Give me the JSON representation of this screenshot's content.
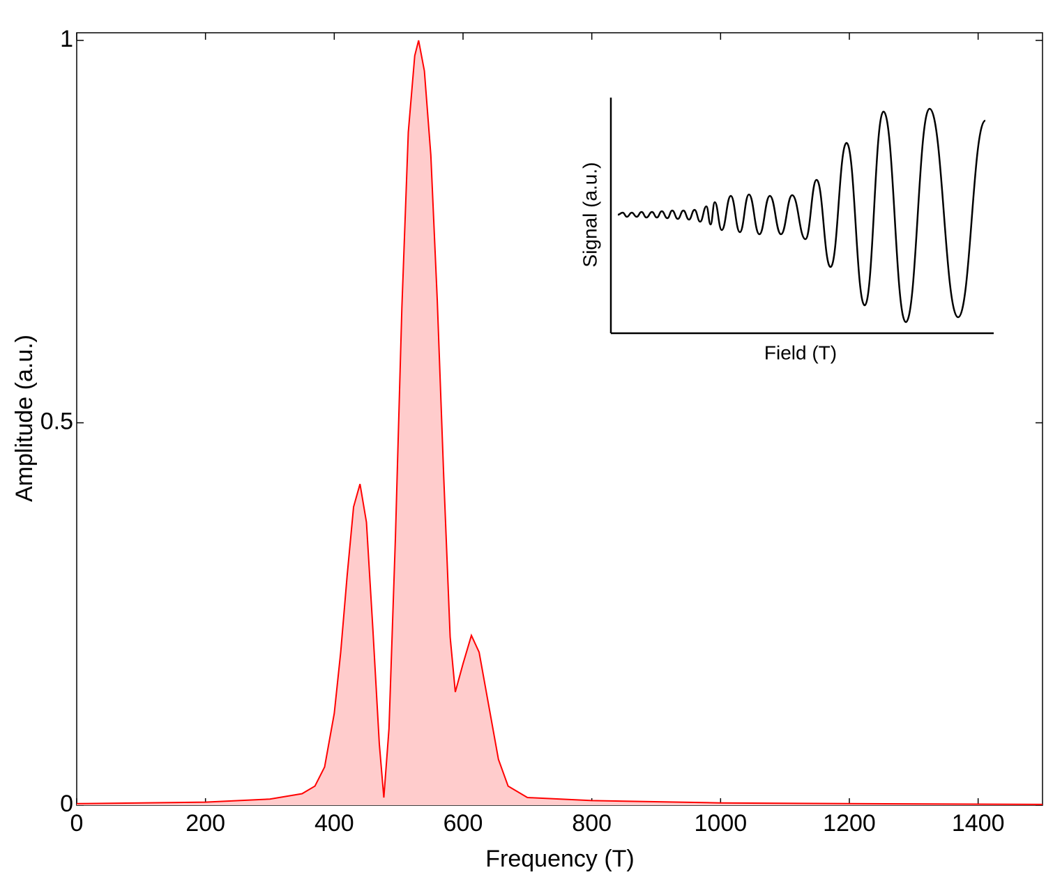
{
  "chart_data": [
    {
      "type": "area",
      "xlabel": "Frequency (T)",
      "ylabel": "Amplitude (a.u.)",
      "color": "#ff0000",
      "fill_color": "#ffcccc",
      "x": [
        0,
        200,
        300,
        350,
        370,
        385,
        400,
        410,
        420,
        430,
        440,
        450,
        460,
        470,
        477,
        485,
        495,
        505,
        515,
        525,
        531,
        540,
        550,
        560,
        570,
        580,
        588,
        600,
        613,
        625,
        640,
        655,
        670,
        700,
        800,
        1000,
        1200,
        1500
      ],
      "values": [
        0.002,
        0.004,
        0.008,
        0.015,
        0.025,
        0.05,
        0.12,
        0.2,
        0.3,
        0.39,
        0.42,
        0.37,
        0.23,
        0.08,
        0.01,
        0.1,
        0.35,
        0.65,
        0.88,
        0.98,
        1.0,
        0.96,
        0.85,
        0.66,
        0.43,
        0.22,
        0.148,
        0.185,
        0.222,
        0.2,
        0.13,
        0.06,
        0.025,
        0.01,
        0.006,
        0.003,
        0.002,
        0.001
      ],
      "xlim": [
        0,
        1500
      ],
      "ylim": [
        0,
        1.01
      ],
      "xticks": [
        0,
        200,
        400,
        600,
        800,
        1000,
        1200,
        1400
      ],
      "yticks": [
        0,
        0.5,
        1
      ],
      "grid": false
    },
    {
      "type": "line",
      "xlabel": "Field (T)",
      "ylabel": "Signal (a.u.)",
      "color": "#000000",
      "x": [
        10,
        17,
        23,
        30,
        37,
        44,
        51,
        59,
        66,
        73,
        81,
        88,
        96,
        104,
        112,
        120,
        128,
        137,
        143,
        149,
        159,
        172,
        185,
        198,
        213,
        228,
        244,
        260,
        279,
        295,
        315,
        338,
        364,
        391,
        423,
        457,
        498,
        537
      ],
      "values": [
        0,
        3,
        -3,
        3,
        -3,
        4,
        -4,
        4,
        -4,
        5,
        -5,
        6,
        -6,
        6,
        -7,
        7,
        -10,
        12,
        -14,
        18,
        -22,
        27,
        -25,
        29,
        -28,
        27,
        -28,
        28,
        -35,
        50,
        -75,
        103,
        -130,
        148,
        -154,
        152,
        -147,
        135
      ],
      "xlim": [
        0,
        549
      ],
      "ylim": [
        -170,
        168
      ]
    }
  ]
}
